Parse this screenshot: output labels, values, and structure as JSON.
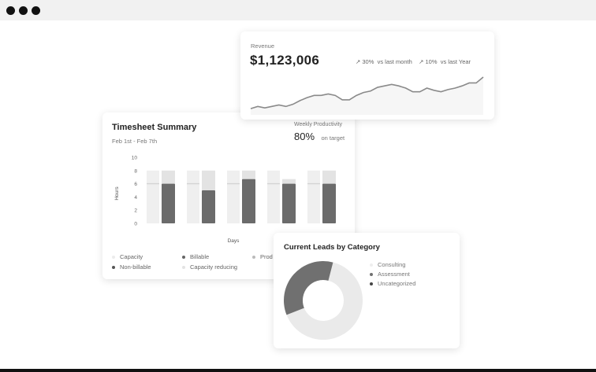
{
  "window": {
    "controls": [
      "close",
      "minimize",
      "maximize"
    ]
  },
  "revenue": {
    "label": "Revenue",
    "value": "$1,123,006",
    "stats": [
      {
        "icon": "trend-up-icon",
        "pct": "30%",
        "text": "vs last month"
      },
      {
        "icon": "trend-up-icon",
        "pct": "10%",
        "text": "vs last Year"
      }
    ],
    "chart_data": {
      "type": "line",
      "values": [
        2,
        5,
        3,
        5,
        7,
        5,
        8,
        13,
        17,
        20,
        20,
        22,
        20,
        14,
        14,
        20,
        24,
        26,
        31,
        33,
        35,
        33,
        30,
        25,
        25,
        30,
        27,
        25,
        28,
        30,
        33,
        37,
        37,
        45
      ]
    }
  },
  "timesheet": {
    "title": "Timesheet Summary",
    "range": "Feb 1st - Feb 7th",
    "productivity_label": "Weekly Productivity",
    "productivity_value": "80%",
    "productivity_suffix": "on target",
    "chart_data": {
      "type": "bar",
      "xlabel": "Days",
      "ylabel": "Hours",
      "ylim": [
        0,
        10
      ],
      "yticks": [
        "0",
        "2",
        "4",
        "6",
        "8",
        "10"
      ],
      "capacity": [
        8,
        8,
        8,
        8,
        8
      ],
      "capacity_reducing": [
        6,
        6,
        6,
        6,
        6
      ],
      "billable": [
        6,
        5,
        6.7,
        6,
        6
      ],
      "total_logged": [
        8,
        8,
        8,
        6.7,
        8
      ]
    },
    "legend": [
      {
        "label": "Capacity",
        "color": "#ececec"
      },
      {
        "label": "Billable",
        "color": "#666666"
      },
      {
        "label": "Prod",
        "color": "#bbbbbb"
      },
      {
        "label": "Non-billable",
        "color": "#555555"
      },
      {
        "label": "Capacity reducing",
        "color": "#e3e3e3"
      }
    ]
  },
  "leads": {
    "title": "Current Leads by Category",
    "chart_data": {
      "type": "pie",
      "labels": [
        "Consulting",
        "Assessment",
        "Uncategorized"
      ],
      "values": [
        65,
        35,
        0
      ],
      "colors": [
        "#eaeaea",
        "#707070",
        "#444444"
      ]
    }
  }
}
